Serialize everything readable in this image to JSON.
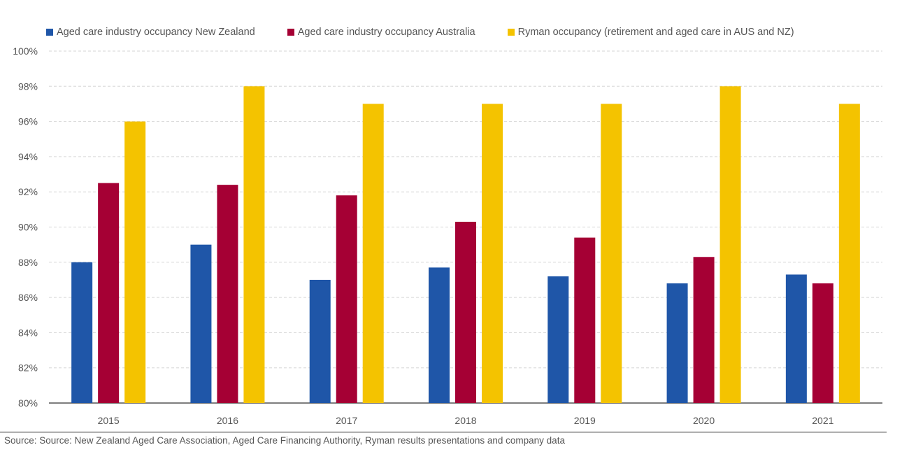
{
  "chart_data": {
    "type": "bar",
    "categories": [
      "2015",
      "2016",
      "2017",
      "2018",
      "2019",
      "2020",
      "2021"
    ],
    "series": [
      {
        "name": "Aged care industry occupancy New Zealand",
        "color": "#1f56a8",
        "values": [
          88.0,
          89.0,
          87.0,
          87.7,
          87.2,
          86.8,
          87.3
        ]
      },
      {
        "name": "Aged care industry occupancy Australia",
        "color": "#a50034",
        "values": [
          92.5,
          92.4,
          91.8,
          90.3,
          89.4,
          88.3,
          86.8
        ]
      },
      {
        "name": "Ryman occupancy (retirement and aged care in AUS and NZ)",
        "color": "#f4c300",
        "values": [
          96.0,
          98.0,
          97.0,
          97.0,
          97.0,
          98.0,
          97.0
        ]
      }
    ],
    "ylim": [
      80,
      100
    ],
    "yticks": [
      "80%",
      "82%",
      "84%",
      "86%",
      "88%",
      "90%",
      "92%",
      "94%",
      "96%",
      "98%",
      "100%"
    ],
    "grid": true,
    "legend_position": "top-left"
  },
  "source": "Source: Source: New Zealand Aged Care Association, Aged Care Financing Authority, Ryman results presentations and company data"
}
